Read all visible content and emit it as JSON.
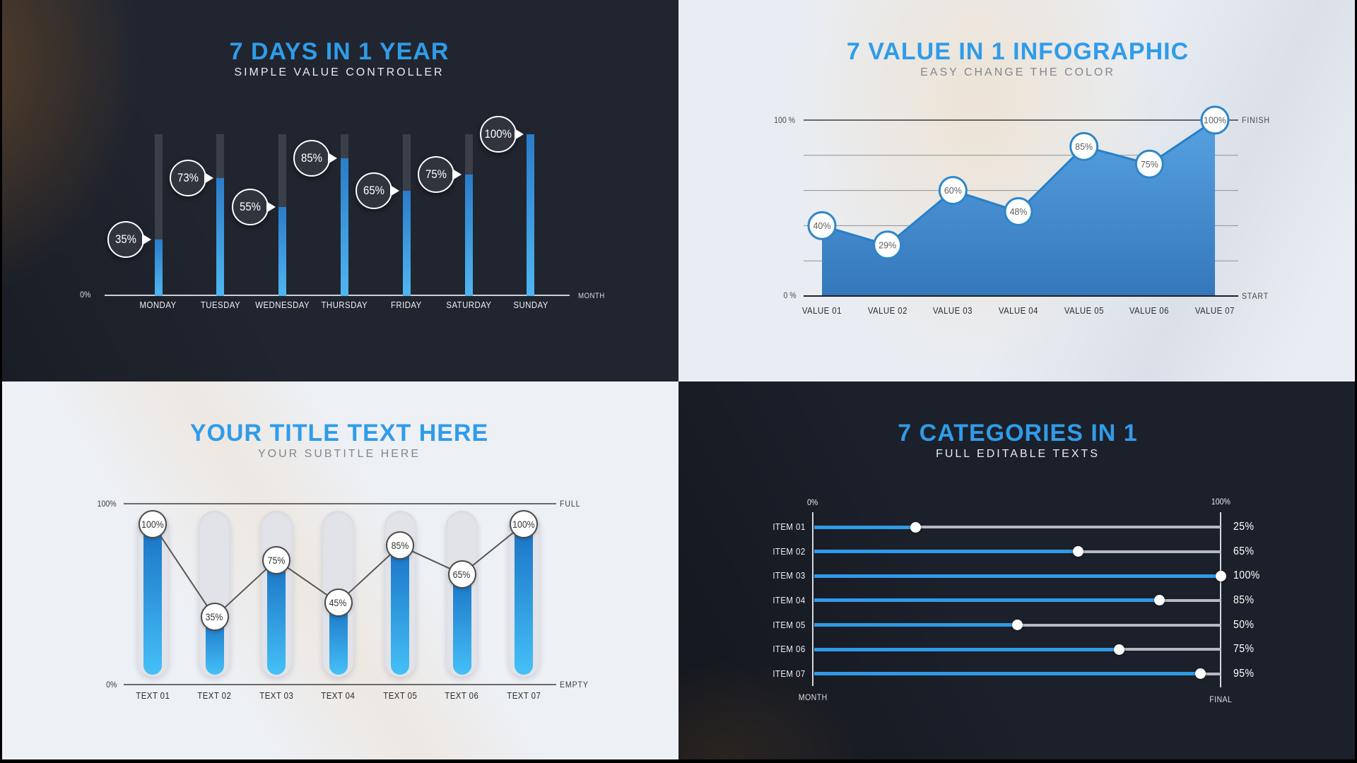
{
  "accent_color": "#2f9ce9",
  "chart_data": [
    {
      "panel": "top-left",
      "type": "bar",
      "orientation": "vertical",
      "theme": "dark",
      "title": "7 DAYS IN 1 YEAR",
      "subtitle": "SIMPLE VALUE CONTROLLER",
      "categories": [
        "MONDAY",
        "TUESDAY",
        "WEDNESDAY",
        "THURSDAY",
        "FRIDAY",
        "SATURDAY",
        "SUNDAY"
      ],
      "values": [
        35,
        73,
        55,
        85,
        65,
        75,
        100
      ],
      "value_labels": [
        "35%",
        "73%",
        "55%",
        "85%",
        "65%",
        "75%",
        "100%"
      ],
      "ylim": [
        0,
        100
      ],
      "y_axis_label_bottom": "0%",
      "x_axis_label": "MONTH",
      "bar_color_top": "#2b7cc9",
      "bar_color_bottom": "#4fb6f1",
      "track_color": "#3a3f4a",
      "bubble_fill": "#30343d",
      "bubble_border": "#ffffff"
    },
    {
      "panel": "top-right",
      "type": "area",
      "theme": "light",
      "title": "7 VALUE IN 1 INFOGRAPHIC",
      "subtitle": "EASY CHANGE THE COLOR",
      "categories": [
        "VALUE 01",
        "VALUE 02",
        "VALUE 03",
        "VALUE 04",
        "VALUE 05",
        "VALUE 06",
        "VALUE 07"
      ],
      "values": [
        40,
        29,
        60,
        48,
        85,
        75,
        100
      ],
      "value_labels": [
        "40%",
        "29%",
        "60%",
        "48%",
        "85%",
        "75%",
        "100%"
      ],
      "ylim": [
        0,
        100
      ],
      "grid": true,
      "gridline_step_pct": 20,
      "y_tick_top": "100 %",
      "y_tick_bottom": "0 %",
      "right_label_top": "FINISH",
      "right_label_bottom": "START",
      "area_color_top": "#57a1e1",
      "area_color_bottom": "#3478bb",
      "line_color": "#2680c8",
      "marker_border": "#2e86c8"
    },
    {
      "panel": "bottom-left",
      "type": "bar",
      "orientation": "vertical",
      "theme": "light",
      "title": "YOUR TITLE TEXT HERE",
      "subtitle": "YOUR SUBTITLE HERE",
      "categories": [
        "TEXT 01",
        "TEXT 02",
        "TEXT 03",
        "TEXT 04",
        "TEXT 05",
        "TEXT 06",
        "TEXT 07"
      ],
      "values": [
        100,
        35,
        75,
        45,
        85,
        65,
        100
      ],
      "value_labels": [
        "100%",
        "35%",
        "75%",
        "45%",
        "85%",
        "65%",
        "100%"
      ],
      "ylim": [
        0,
        100
      ],
      "left_label_top": "100%",
      "left_label_bottom": "0%",
      "right_label_top": "FULL",
      "right_label_bottom": "EMPTY",
      "bar_color_top": "#1a72c4",
      "bar_color_bottom": "#45c0f7",
      "track_color": "#e1e3e8",
      "marker_border": "#4b4b4b",
      "connector_color": "#585858"
    },
    {
      "panel": "bottom-right",
      "type": "bar",
      "orientation": "horizontal",
      "theme": "dark",
      "title": "7 CATEGORIES IN 1",
      "subtitle": "FULL EDITABLE TEXTS",
      "categories": [
        "ITEM 01",
        "ITEM 02",
        "ITEM 03",
        "ITEM 04",
        "ITEM 05",
        "ITEM 06",
        "ITEM 07"
      ],
      "values": [
        25,
        65,
        100,
        85,
        50,
        75,
        95
      ],
      "value_labels": [
        "25%",
        "65%",
        "100%",
        "85%",
        "50%",
        "75%",
        "95%"
      ],
      "xlim": [
        0,
        100
      ],
      "axis_label_top_left": "0%",
      "axis_label_top_right": "100%",
      "axis_label_bottom_left": "MONTH",
      "axis_label_bottom_right": "FINAL",
      "bar_color": "#2f9be9",
      "track_color": "#b6bac0",
      "knob_color": "#ffffff"
    }
  ]
}
